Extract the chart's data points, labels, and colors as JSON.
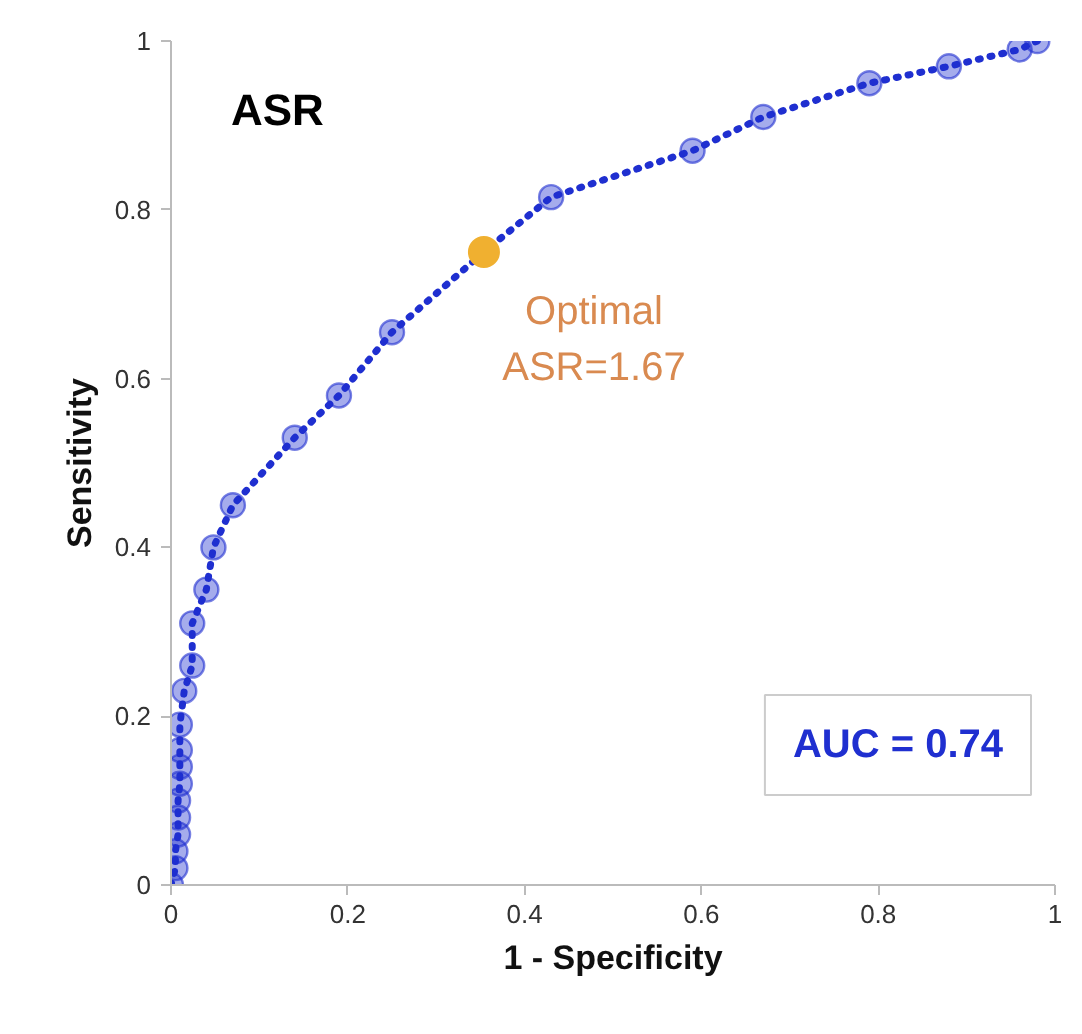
{
  "chart_data": {
    "type": "line",
    "title": "ASR",
    "xlabel": "1 - Specificity",
    "ylabel": "Sensitivity",
    "xlim": [
      0,
      1
    ],
    "ylim": [
      0,
      1
    ],
    "xticks": [
      0,
      0.2,
      0.4,
      0.6,
      0.8,
      1
    ],
    "yticks": [
      0,
      0.2,
      0.4,
      0.6,
      0.8,
      1
    ],
    "grid": false,
    "marker": "circle",
    "line_style": "dotted",
    "series": [
      {
        "color": "#1f2fd0",
        "x": [
          0,
          0.005,
          0.005,
          0.008,
          0.008,
          0.008,
          0.01,
          0.01,
          0.01,
          0.01,
          0.015,
          0.024,
          0.024,
          0.04,
          0.048,
          0.07,
          0.14,
          0.19,
          0.25,
          0.354,
          0.43,
          0.59,
          0.67,
          0.79,
          0.88,
          0.96,
          0.98
        ],
        "values": [
          0,
          0.02,
          0.04,
          0.06,
          0.08,
          0.1,
          0.12,
          0.14,
          0.16,
          0.19,
          0.23,
          0.26,
          0.31,
          0.35,
          0.4,
          0.45,
          0.53,
          0.58,
          0.655,
          0.75,
          0.815,
          0.87,
          0.91,
          0.95,
          0.97,
          0.99,
          1.0
        ]
      },
      {
        "type": "scatter",
        "color": "#f0b030",
        "x": [
          0.354
        ],
        "values": [
          0.75
        ]
      }
    ],
    "annotations": [
      {
        "text": "Optimal\nASR=1.67",
        "x": 0.354,
        "y": 0.75
      },
      "AUC = 0.74"
    ]
  }
}
